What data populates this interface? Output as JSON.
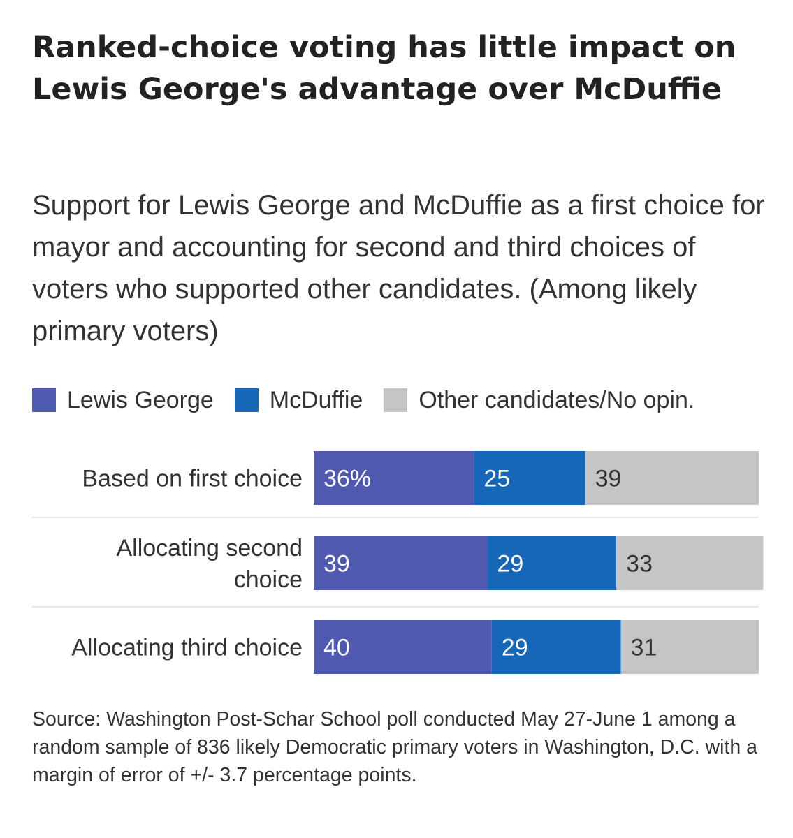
{
  "title": "Ranked-choice voting has little impact on Lewis George's advantage over McDuffie",
  "subtitle": "Support for Lewis George and McDuffie as a first choice for mayor and accounting for second and third choices of voters who supported other candidates. (Among likely primary voters)",
  "source": "Source: Washington Post-Schar School poll conducted May 27-June 1 among a random sample of 836 likely Democratic primary voters in Washington, D.C. with a margin of error of +/- 3.7 percentage points.",
  "chart_data": {
    "type": "bar",
    "orientation": "horizontal",
    "stacked": true,
    "title": "Ranked-choice voting has little impact on Lewis George's advantage over McDuffie",
    "subtitle": "Support for Lewis George and McDuffie as a first choice for mayor and accounting for second and third choices of voters who supported other candidates. (Among likely primary voters)",
    "legend_position": "top-left",
    "grid": false,
    "xlim": [
      0,
      100
    ],
    "categories": [
      [
        "Based on first choice"
      ],
      [
        "Allocating second",
        "choice"
      ],
      [
        "Allocating third choice"
      ]
    ],
    "series": [
      {
        "name": "Lewis George",
        "color": "#5059b0",
        "values": [
          36,
          39,
          40
        ],
        "labels": [
          "36%",
          "39",
          "40"
        ]
      },
      {
        "name": "McDuffie",
        "color": "#1667b7",
        "values": [
          25,
          29,
          29
        ],
        "labels": [
          "25",
          "29",
          "29"
        ]
      },
      {
        "name": "Other candidates/No opin.",
        "color": "#c5c5c5",
        "values": [
          39,
          33,
          31
        ],
        "labels": [
          "39",
          "33",
          "31"
        ]
      }
    ]
  }
}
